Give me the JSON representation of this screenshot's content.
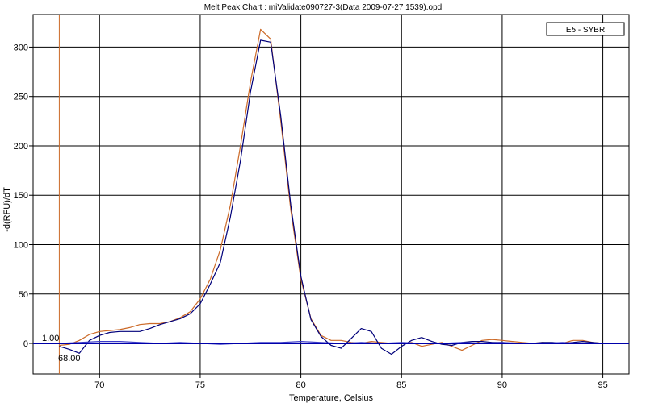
{
  "chart_data": {
    "type": "line",
    "title": "Melt Peak Chart : miValidate090727-3(Data 2009-07-27 1539).opd",
    "xlabel": "Temperature, Celsius",
    "ylabel": "-d(RFU)/dT",
    "xlim": [
      66.7,
      96.3
    ],
    "ylim": [
      -31,
      333
    ],
    "x_ticks": [
      70,
      75,
      80,
      85,
      90,
      95
    ],
    "y_ticks": [
      0,
      50,
      100,
      150,
      200,
      250,
      300
    ],
    "grid": true,
    "legend": {
      "placement": "top-right",
      "label": "E5 - SYBR"
    },
    "threshold_line": {
      "y": 0,
      "color": "#0000aa"
    },
    "cursor": {
      "x": 68,
      "color": "#cc6a28",
      "label_top": "1.00",
      "label_bottom": "68.00"
    },
    "series": [
      {
        "color": "#cc6a28",
        "x": [
          68,
          68.5,
          69,
          69.5,
          70,
          70.5,
          71,
          71.5,
          72,
          72.5,
          73,
          73.5,
          74,
          74.5,
          75,
          75.5,
          76,
          76.5,
          77,
          77.5,
          78,
          78.5,
          79,
          79.5,
          80,
          80.5,
          81,
          81.5,
          82,
          82.5,
          83,
          83.5,
          84,
          84.5,
          85,
          85.5,
          86,
          86.5,
          87,
          87.5,
          88,
          88.5,
          89,
          89.5,
          90,
          90.5,
          91,
          91.5,
          92,
          92.5,
          93,
          93.5,
          94,
          94.5,
          95
        ],
        "y": [
          -2,
          -1,
          3,
          9,
          12,
          13,
          14,
          16,
          19,
          20,
          20,
          22,
          26,
          32,
          45,
          65,
          95,
          140,
          200,
          265,
          318,
          308,
          225,
          135,
          65,
          25,
          8,
          3,
          3,
          1,
          0,
          2,
          1,
          0,
          0,
          1,
          -3,
          -1,
          1,
          -3,
          -7,
          -2,
          3,
          4,
          3,
          2,
          1,
          0,
          1,
          0,
          0,
          3,
          3,
          1,
          0
        ]
      },
      {
        "color": "#00007a",
        "x": [
          68,
          68.5,
          69,
          69.5,
          70,
          70.5,
          71,
          71.5,
          72,
          72.5,
          73,
          73.5,
          74,
          74.5,
          75,
          75.5,
          76,
          76.5,
          77,
          77.5,
          78,
          78.5,
          79,
          79.5,
          80,
          80.5,
          81,
          81.5,
          82,
          82.5,
          83,
          83.5,
          84,
          84.5,
          85,
          85.5,
          86,
          86.5,
          87,
          87.5,
          88,
          88.5,
          89,
          89.5,
          90,
          90.5,
          91,
          91.5,
          92,
          92.5,
          93,
          93.5,
          94,
          94.5,
          95
        ],
        "y": [
          -3,
          -6,
          -10,
          3,
          8,
          11,
          12,
          12,
          12,
          15,
          19,
          22,
          25,
          30,
          40,
          60,
          82,
          128,
          185,
          255,
          307,
          305,
          230,
          140,
          68,
          24,
          7,
          -2,
          -5,
          5,
          15,
          12,
          -5,
          -11,
          -3,
          3,
          6,
          2,
          -1,
          -2,
          1,
          2,
          2,
          1,
          1,
          0,
          0,
          0,
          1,
          1,
          0,
          1,
          2,
          1,
          0
        ]
      },
      {
        "color": "#3a3ac8",
        "x": [
          68,
          69,
          70,
          71,
          72,
          73,
          74,
          75,
          76,
          77,
          78,
          79,
          80,
          81,
          82,
          83,
          84,
          85,
          86,
          87,
          88,
          89,
          90,
          91,
          92,
          93,
          94,
          95
        ],
        "y": [
          0,
          1,
          2,
          2,
          1,
          0,
          1,
          0,
          -1,
          0,
          1,
          1,
          2,
          1,
          0,
          1,
          0,
          1,
          0,
          0,
          1,
          0,
          1,
          0,
          0,
          1,
          0,
          0
        ]
      }
    ]
  }
}
